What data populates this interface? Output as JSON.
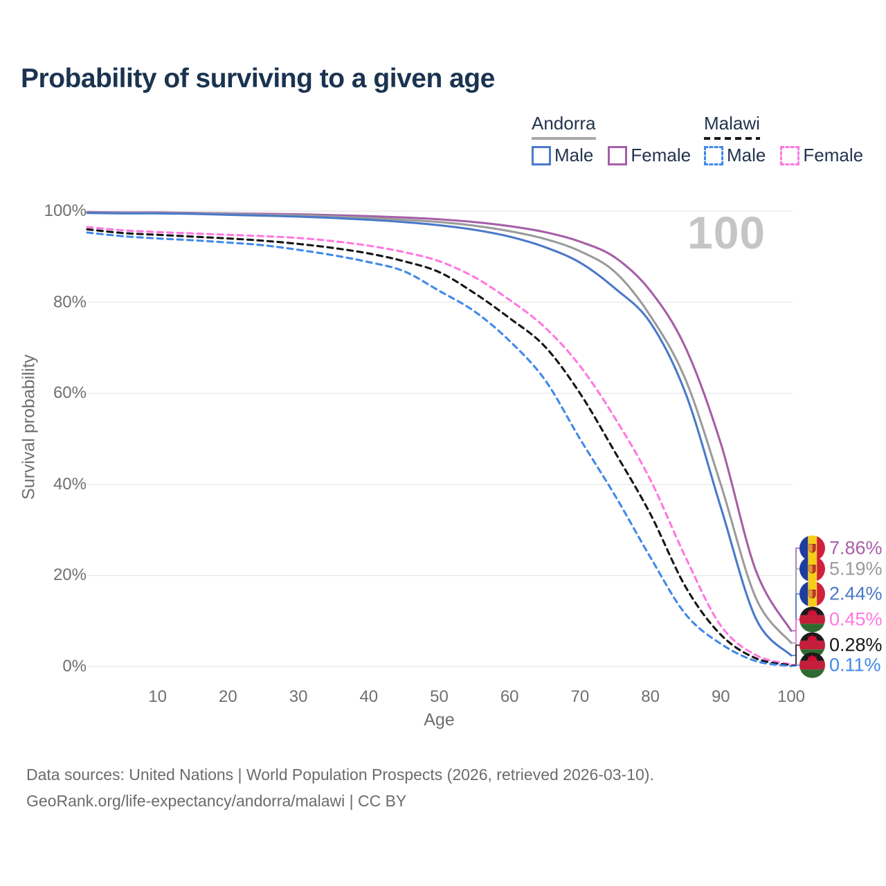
{
  "page": {
    "title": "Probability of surviving to a given age",
    "watermark": "100",
    "source_line1": "Data sources: United Nations | World Population Prospects (2026, retrieved 2026-03-10).",
    "source_line2": "GeoRank.org/life-expectancy/andorra/malawi | CC BY"
  },
  "legend": {
    "groups": [
      {
        "label": "Andorra",
        "rule_style": "solid",
        "items": [
          {
            "label": "Male",
            "color": "#4b79c9",
            "dash": "solid"
          },
          {
            "label": "Female",
            "color": "#a55fa7",
            "dash": "solid"
          }
        ]
      },
      {
        "label": "Malawi",
        "rule_style": "dashed",
        "items": [
          {
            "label": "Male",
            "color": "#4189e8",
            "dash": "dashed"
          },
          {
            "label": "Female",
            "color": "#ff78e0",
            "dash": "dashed"
          }
        ]
      }
    ]
  },
  "chart_data": {
    "type": "line",
    "title": "Probability of surviving to a given age",
    "xlabel": "Age",
    "ylabel": "Survival probability",
    "xlim": [
      0,
      100
    ],
    "ylim": [
      0,
      100
    ],
    "grid": "horizontal",
    "legend_position": "top-right",
    "x_ticks": [
      10,
      20,
      30,
      40,
      50,
      60,
      70,
      80,
      90,
      100
    ],
    "y_ticks": [
      0,
      20,
      40,
      60,
      80,
      100
    ],
    "y_tick_suffix": "%",
    "x": [
      0,
      5,
      10,
      15,
      20,
      25,
      30,
      35,
      40,
      45,
      50,
      55,
      60,
      65,
      70,
      75,
      80,
      85,
      90,
      95,
      100
    ],
    "series": [
      {
        "name": "Andorra Female",
        "country": "Andorra",
        "sex": "Female",
        "color": "#a55fa7",
        "dash": "solid",
        "icon": "andorra-flag",
        "end_label": "7.86%",
        "values": [
          99.8,
          99.7,
          99.7,
          99.6,
          99.5,
          99.4,
          99.3,
          99.1,
          98.9,
          98.6,
          98.2,
          97.6,
          96.7,
          95.4,
          93.3,
          89.8,
          82.5,
          70.0,
          49.0,
          21.0,
          7.86
        ]
      },
      {
        "name": "Andorra Both sexes",
        "country": "Andorra",
        "sex": "Both",
        "color": "#9b9b9b",
        "dash": "solid",
        "icon": "andorra-flag",
        "end_label": "5.19%",
        "values": [
          99.7,
          99.6,
          99.6,
          99.5,
          99.4,
          99.2,
          99.1,
          98.8,
          98.5,
          98.1,
          97.6,
          96.8,
          95.6,
          93.9,
          91.2,
          86.6,
          77.0,
          63.0,
          40.0,
          15.0,
          5.19
        ]
      },
      {
        "name": "Andorra Male",
        "country": "Andorra",
        "sex": "Male",
        "color": "#4b79c9",
        "dash": "solid",
        "icon": "andorra-flag",
        "end_label": "2.44%",
        "values": [
          99.6,
          99.5,
          99.5,
          99.4,
          99.2,
          99.0,
          98.8,
          98.5,
          98.1,
          97.6,
          96.9,
          95.9,
          94.4,
          92.1,
          88.7,
          83.0,
          75.5,
          60.0,
          35.0,
          10.5,
          2.44
        ]
      },
      {
        "name": "Malawi Female",
        "country": "Malawi",
        "sex": "Female",
        "color": "#ff78e0",
        "dash": "dashed",
        "icon": "malawi-flag",
        "end_label": "0.45%",
        "values": [
          96.5,
          95.8,
          95.4,
          95.1,
          94.8,
          94.5,
          94.1,
          93.4,
          92.4,
          91.0,
          89.0,
          85.5,
          80.5,
          74.5,
          66.0,
          54.5,
          41.0,
          24.0,
          9.0,
          2.5,
          0.45
        ]
      },
      {
        "name": "Malawi Both sexes",
        "country": "Malawi",
        "sex": "Both",
        "color": "#151515",
        "dash": "dashed",
        "icon": "malawi-flag",
        "end_label": "0.28%",
        "values": [
          96.0,
          95.2,
          94.8,
          94.4,
          94.0,
          93.5,
          92.8,
          91.9,
          90.7,
          89.0,
          86.6,
          82.0,
          76.5,
          70.3,
          60.0,
          47.0,
          33.5,
          17.5,
          7.0,
          1.8,
          0.28
        ]
      },
      {
        "name": "Malawi Male",
        "country": "Malawi",
        "sex": "Male",
        "color": "#4189e8",
        "dash": "dashed",
        "icon": "malawi-flag",
        "end_label": "0.11%",
        "values": [
          95.3,
          94.5,
          94.0,
          93.6,
          93.1,
          92.5,
          91.5,
          90.3,
          88.8,
          86.8,
          82.5,
          78.0,
          71.5,
          63.0,
          50.0,
          37.5,
          24.0,
          11.5,
          5.0,
          1.2,
          0.11
        ]
      }
    ]
  }
}
